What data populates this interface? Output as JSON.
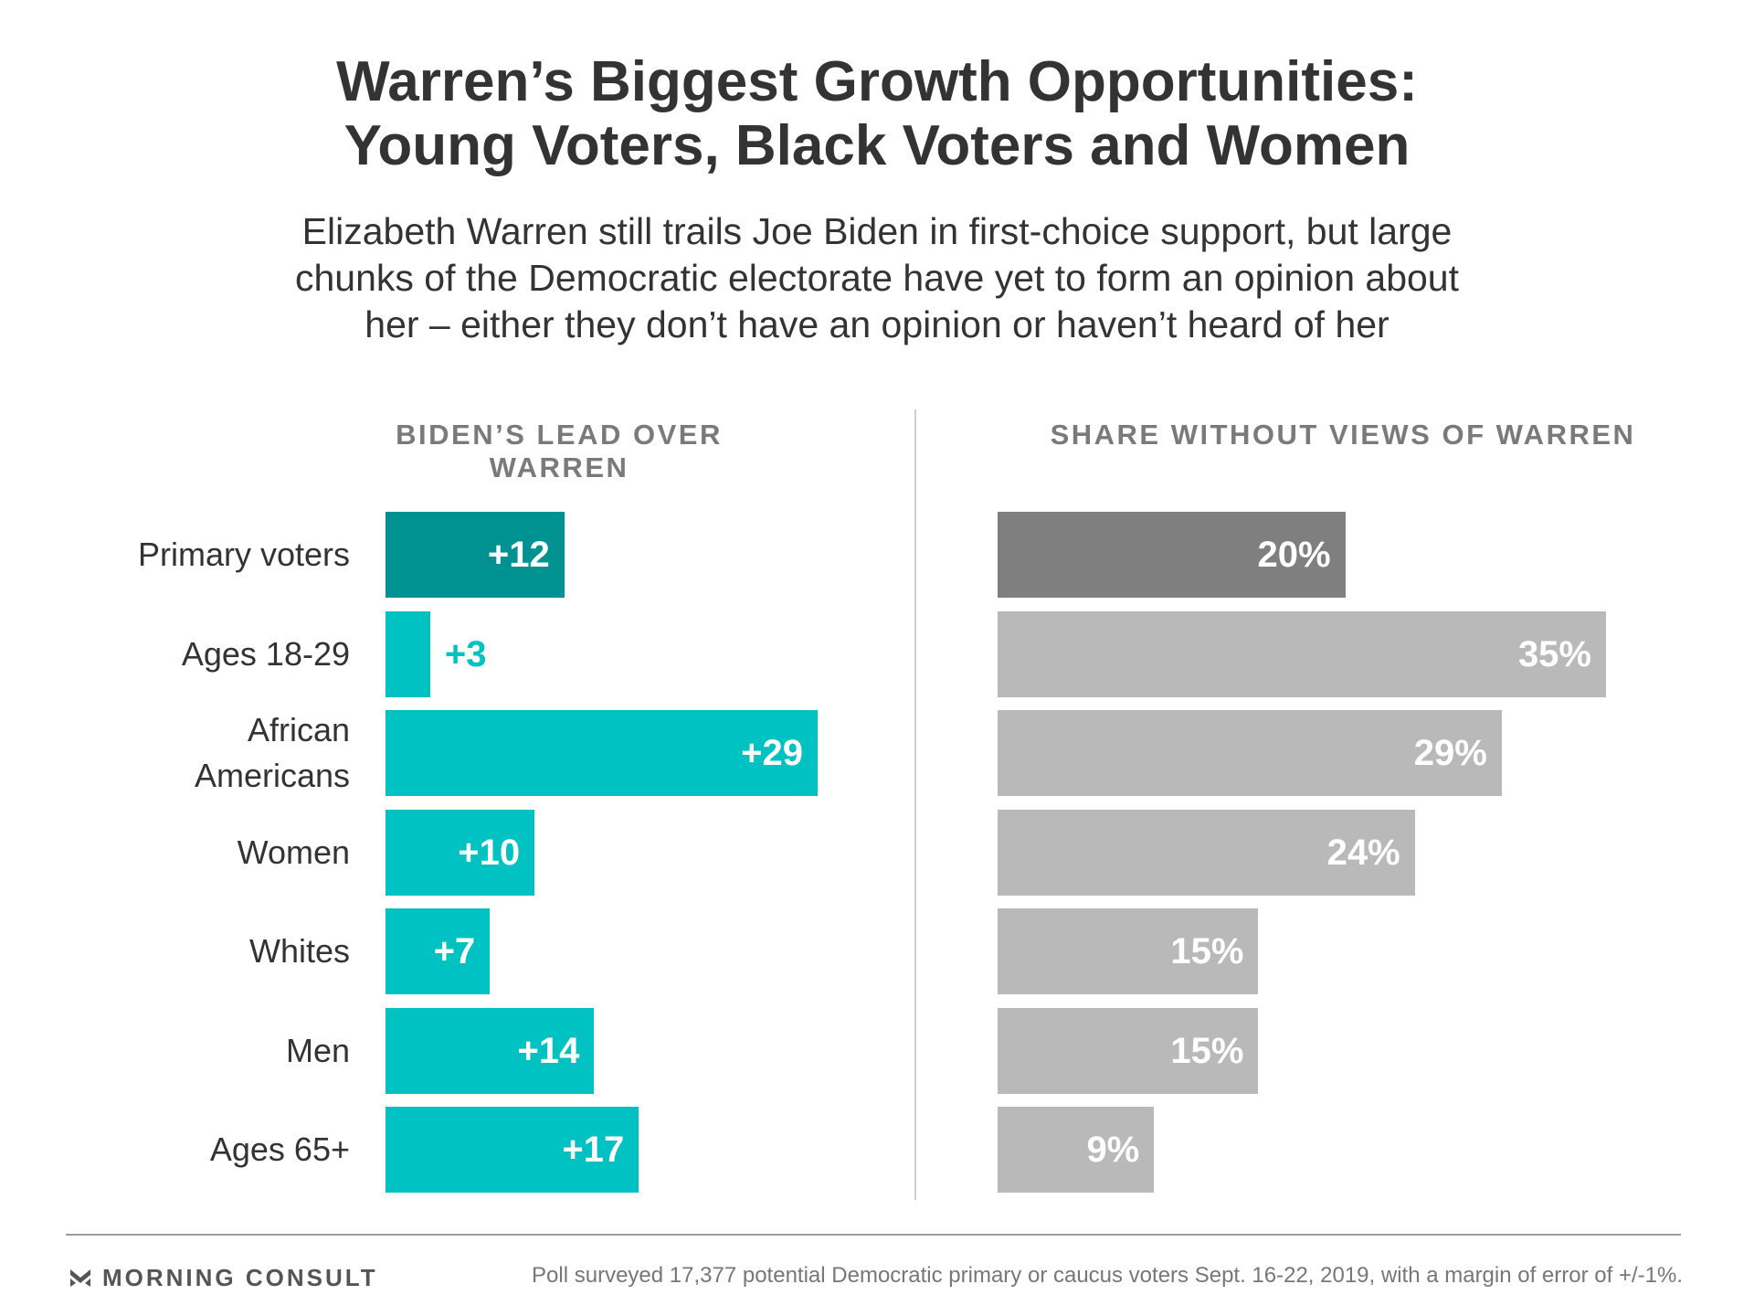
{
  "header": {
    "title_line1": "Warren’s Biggest Growth Opportunities:",
    "title_line2": "Young Voters, Black Voters and Women",
    "subtitle_line1": "Elizabeth Warren still trails Joe Biden in first-choice support, but large",
    "subtitle_line2": "chunks of the Democratic electorate have yet to form an opinion about",
    "subtitle_line3": "her – either they don’t have an opinion or haven’t heard of her"
  },
  "chart_data": [
    {
      "type": "bar",
      "orientation": "horizontal",
      "title": "BIDEN’S LEAD OVER WARREN",
      "categories": [
        "Primary voters",
        "Ages 18-29",
        "African Americans",
        "Women",
        "Whites",
        "Men",
        "Ages 65+"
      ],
      "category_lines": [
        [
          "Primary voters"
        ],
        [
          "Ages 18-29"
        ],
        [
          "African",
          "Americans"
        ],
        [
          "Women"
        ],
        [
          "Whites"
        ],
        [
          "Men"
        ],
        [
          "Ages 65+"
        ]
      ],
      "values": [
        12,
        3,
        29,
        10,
        7,
        14,
        17
      ],
      "labels": [
        "+12",
        "+3",
        "+29",
        "+10",
        "+7",
        "+14",
        "+17"
      ],
      "colors": [
        "#009191",
        "#00c2c2",
        "#00c2c2",
        "#00c2c2",
        "#00c2c2",
        "#00c2c2",
        "#00c2c2"
      ],
      "xlim": [
        0,
        30
      ],
      "grid": false,
      "legend": "none"
    },
    {
      "type": "bar",
      "orientation": "horizontal",
      "title": "SHARE WITHOUT VIEWS OF WARREN",
      "categories": [
        "Primary voters",
        "Ages 18-29",
        "African Americans",
        "Women",
        "Whites",
        "Men",
        "Ages 65+"
      ],
      "values": [
        20,
        35,
        29,
        24,
        15,
        15,
        9
      ],
      "labels": [
        "20%",
        "35%",
        "29%",
        "24%",
        "15%",
        "15%",
        "9%"
      ],
      "colors": [
        "#7f7f7f",
        "#b9b9b9",
        "#b9b9b9",
        "#b9b9b9",
        "#b9b9b9",
        "#b9b9b9",
        "#b9b9b9"
      ],
      "xlim": [
        0,
        36
      ],
      "grid": false,
      "legend": "none"
    }
  ],
  "footer": {
    "brand": "MORNING CONSULT",
    "brand_icon": "morning-consult-logo-icon",
    "source": "Poll surveyed 17,377 potential Democratic primary or caucus voters Sept. 16-22, 2019, with a margin of error of +/-1%."
  }
}
